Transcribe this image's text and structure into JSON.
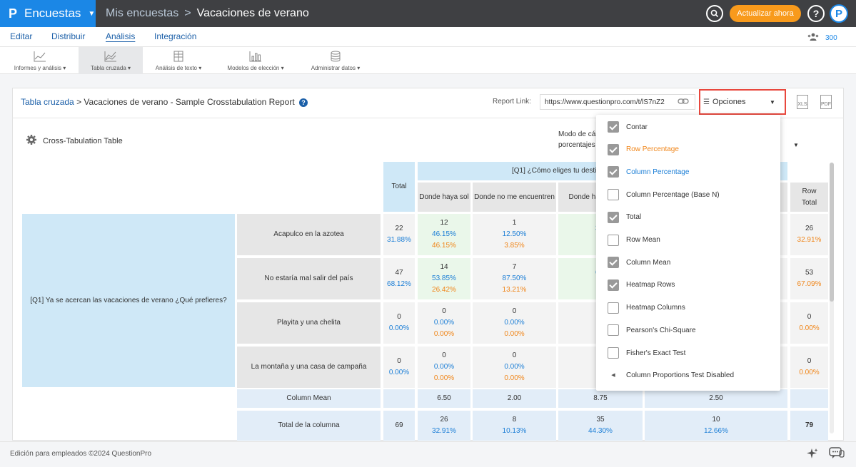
{
  "topbar": {
    "brand": "Encuestas",
    "crumb_parent": "Mis encuestas",
    "crumb_sep": ">",
    "crumb_current": "Vacaciones de verano",
    "upgrade": "Actualizar ahora",
    "help": "?",
    "avatar_letter": "P"
  },
  "menu": {
    "items": [
      "Editar",
      "Distribuir",
      "Análisis",
      "Integración"
    ],
    "active": "Análisis",
    "users_count": "300"
  },
  "toolbar": {
    "items": [
      "Informes y análisis",
      "Tabla cruzada",
      "Análisis de texto",
      "Modelos de elección",
      "Administrar datos"
    ],
    "selected": "Tabla cruzada"
  },
  "panel": {
    "crumb_link": "Tabla cruzada",
    "crumb_rest": "> Vacaciones de verano - Sample Crosstabulation Report",
    "report_link_label": "Report Link:",
    "report_link_value": "https://www.questionpro.com/t/lS7nZ2",
    "options_label": "Opciones",
    "xls": "XLS",
    "pdf": "PDF",
    "section_title": "Cross-Tabulation Table",
    "modo_line1": "Modo de cálculo",
    "modo_line2": "porcentajes"
  },
  "table": {
    "q_header": "[Q1] ¿Cómo eliges tu destino?",
    "total_header": "Total",
    "row_total_header": "Row Total",
    "col_headers": [
      "Donde haya sol",
      "Donde no me encuentren",
      "Donde haya comida",
      ""
    ],
    "row_question": "[Q1] Ya se acercan las vacaciones de verano ¿Qué prefieres?",
    "rows": [
      {
        "label": "Acapulco en la azotea",
        "total": "22",
        "total_pct": "31.88%",
        "cells": [
          [
            "12",
            "46.15%",
            "46.15%"
          ],
          [
            "1",
            "12.50%",
            "3.85%"
          ],
          [
            "",
            "34.",
            "4"
          ],
          [
            "",
            "",
            ""
          ]
        ],
        "row_total": "26",
        "row_total_pct": "32.91%"
      },
      {
        "label": "No estaría mal salir del país",
        "total": "47",
        "total_pct": "68.12%",
        "cells": [
          [
            "14",
            "53.85%",
            "26.42%"
          ],
          [
            "7",
            "87.50%",
            "13.21%"
          ],
          [
            "",
            "65.",
            "43"
          ],
          [
            "",
            "",
            ""
          ]
        ],
        "row_total": "53",
        "row_total_pct": "67.09%"
      },
      {
        "label": "Playita y una chelita",
        "total": "0",
        "total_pct": "0.00%",
        "cells": [
          [
            "0",
            "0.00%",
            "0.00%"
          ],
          [
            "0",
            "0.00%",
            "0.00%"
          ],
          [
            "",
            "0.",
            "0."
          ],
          [
            "",
            "",
            ""
          ]
        ],
        "row_total": "0",
        "row_total_pct": "0.00%"
      },
      {
        "label": "La montaña y una casa de campaña",
        "total": "0",
        "total_pct": "0.00%",
        "cells": [
          [
            "0",
            "0.00%",
            "0.00%"
          ],
          [
            "0",
            "0.00%",
            "0.00%"
          ],
          [
            "",
            "0.",
            "0."
          ],
          [
            "",
            "",
            ""
          ]
        ],
        "row_total": "0",
        "row_total_pct": "0.00%"
      }
    ],
    "column_mean_label": "Column Mean",
    "column_mean": [
      "6.50",
      "2.00",
      "8.75",
      "2.50"
    ],
    "column_total_label": "Total de la columna",
    "column_total": "69",
    "column_totals": [
      [
        "26",
        "32.91%"
      ],
      [
        "8",
        "10.13%"
      ],
      [
        "35",
        "44.30%"
      ],
      [
        "10",
        "12.66%"
      ]
    ],
    "grand_total": "79"
  },
  "dropdown": {
    "options": [
      {
        "label": "Contar",
        "checked": true,
        "color": "#333333"
      },
      {
        "label": "Row Percentage",
        "checked": true,
        "color": "#f0861a"
      },
      {
        "label": "Column Percentage",
        "checked": true,
        "color": "#1b7ed6"
      },
      {
        "label": "Column Percentage (Base N)",
        "checked": false,
        "color": "#333333"
      },
      {
        "label": "Total",
        "checked": true,
        "color": "#333333"
      },
      {
        "label": "Row Mean",
        "checked": false,
        "color": "#333333"
      },
      {
        "label": "Column Mean",
        "checked": true,
        "color": "#333333"
      },
      {
        "label": "Heatmap Rows",
        "checked": true,
        "color": "#333333"
      },
      {
        "label": "Heatmap Columns",
        "checked": false,
        "color": "#333333"
      },
      {
        "label": "Pearson's Chi-Square",
        "checked": false,
        "color": "#333333"
      },
      {
        "label": "Fisher's Exact Test",
        "checked": false,
        "color": "#333333"
      }
    ],
    "submenu": "Column Proportions Test Disabled"
  },
  "footer": {
    "text": "Edición para empleados ©2024 QuestionPro"
  },
  "colors": {
    "brand": "#1b87e6",
    "topbar": "#3f4043",
    "upgrade": "#f89a1c",
    "highlight_border": "#e8473d",
    "row_pct": "#f0861a",
    "col_pct": "#1b7ed6"
  }
}
